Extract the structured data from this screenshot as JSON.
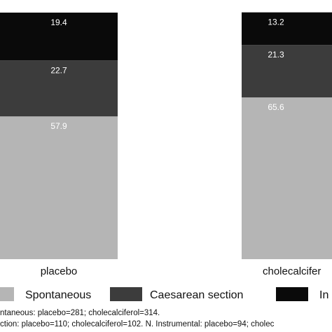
{
  "chart_data": {
    "type": "bar",
    "stacked": true,
    "categories": [
      "placebo",
      "cholecalciferol"
    ],
    "category_labels_shown": [
      "placebo",
      "cholecalcifer"
    ],
    "series": [
      {
        "name": "Spontaneous",
        "values": [
          57.9,
          65.6
        ],
        "color": "#b5b5b5"
      },
      {
        "name": "Caesarean section",
        "values": [
          22.7,
          21.3
        ],
        "color": "#3c3c3c"
      },
      {
        "name": "In",
        "values": [
          19.4,
          13.2
        ],
        "color": "#0a0a0a"
      }
    ],
    "ylim": [
      0,
      100
    ],
    "grid": false,
    "legend_position": "bottom"
  },
  "footnotes": {
    "line1": "ntaneous: placebo=281; cholecalciferol=314.",
    "line2": "ction: placebo=110; cholecalciferol=102. N. Instrumental: placebo=94; cholec"
  }
}
